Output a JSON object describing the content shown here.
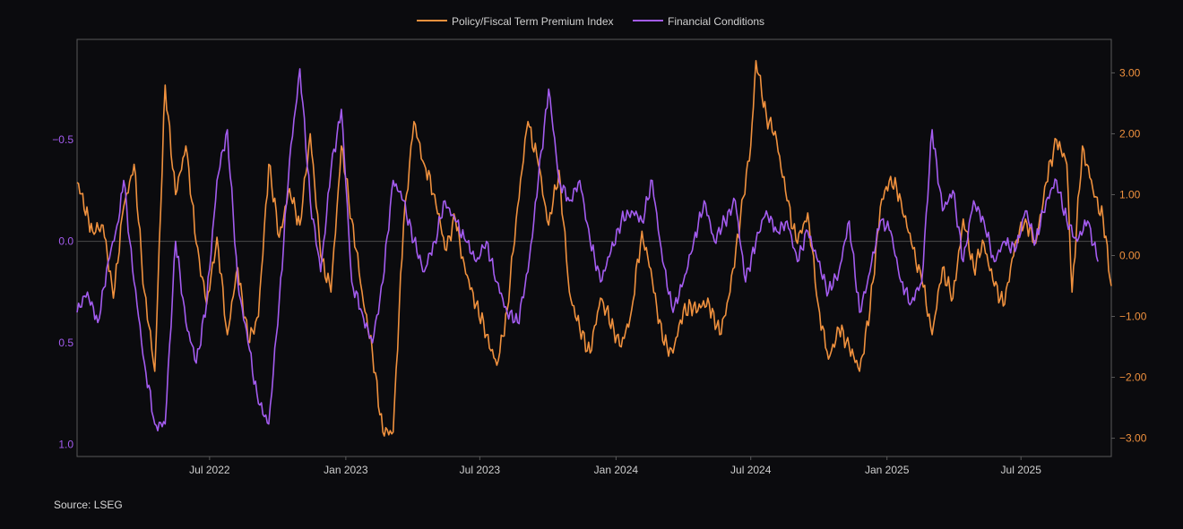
{
  "chart_data": {
    "type": "line",
    "title": "",
    "source_note": "Source: LSEG",
    "colors": {
      "background": "#0b0b0e",
      "frame": "#5a5a5a",
      "zero_line": "#4a4a4a",
      "left_axis": "#a45cf0",
      "right_axis": "#f0913e"
    },
    "x_range": [
      "2022-01-03",
      "2025-10-31"
    ],
    "x_ticks": [
      {
        "date": "2022-07-01",
        "label": "Jul 2022"
      },
      {
        "date": "2023-01-01",
        "label": "Jan 2023"
      },
      {
        "date": "2023-07-01",
        "label": "Jul 2023"
      },
      {
        "date": "2024-01-01",
        "label": "Jan 2024"
      },
      {
        "date": "2024-07-01",
        "label": "Jul 2024"
      },
      {
        "date": "2025-01-01",
        "label": "Jan 2025"
      },
      {
        "date": "2025-07-01",
        "label": "Jul 2025"
      }
    ],
    "y_left": {
      "label": "Financial Conditions",
      "inverted": true,
      "range": [
        -0.995,
        1.06
      ],
      "ticks": [
        {
          "value": -0.5,
          "label": "−0.5"
        },
        {
          "value": 0.0,
          "label": "0.0"
        },
        {
          "value": 0.5,
          "label": "0.5"
        },
        {
          "value": 1.0,
          "label": "1.0"
        }
      ]
    },
    "y_right": {
      "label": "Policy/Fiscal Term Premium Index",
      "range": [
        -3.3,
        3.55
      ],
      "ticks": [
        {
          "value": 3.0,
          "label": "3.00"
        },
        {
          "value": 2.0,
          "label": "2.00"
        },
        {
          "value": 1.0,
          "label": "1.00"
        },
        {
          "value": 0.0,
          "label": "0.00"
        },
        {
          "value": -1.0,
          "label": "−1.00"
        },
        {
          "value": -2.0,
          "label": "−2.00"
        },
        {
          "value": -3.0,
          "label": "−3.00"
        }
      ]
    },
    "legend": {
      "placement": "top-center",
      "entries": [
        "Policy/Fiscal Term Premium Index",
        "Financial Conditions"
      ]
    },
    "series": [
      {
        "name": "Policy/Fiscal Term Premium Index",
        "axis": "right",
        "color": "#f0913e",
        "points": [
          [
            "2022-01-03",
            1.2
          ],
          [
            "2022-01-24",
            0.4
          ],
          [
            "2022-02-07",
            0.5
          ],
          [
            "2022-02-21",
            -0.7
          ],
          [
            "2022-03-07",
            0.8
          ],
          [
            "2022-03-21",
            1.5
          ],
          [
            "2022-04-04",
            -0.6
          ],
          [
            "2022-04-18",
            -1.9
          ],
          [
            "2022-05-02",
            2.8
          ],
          [
            "2022-05-16",
            1.0
          ],
          [
            "2022-05-30",
            1.8
          ],
          [
            "2022-06-13",
            0.2
          ],
          [
            "2022-06-27",
            -0.8
          ],
          [
            "2022-07-11",
            0.3
          ],
          [
            "2022-07-25",
            -1.3
          ],
          [
            "2022-08-08",
            -0.2
          ],
          [
            "2022-08-22",
            -1.4
          ],
          [
            "2022-09-05",
            -1.0
          ],
          [
            "2022-09-19",
            1.5
          ],
          [
            "2022-10-03",
            0.3
          ],
          [
            "2022-10-17",
            1.1
          ],
          [
            "2022-10-31",
            0.5
          ],
          [
            "2022-11-14",
            2.0
          ],
          [
            "2022-11-28",
            0.0
          ],
          [
            "2022-12-12",
            -0.6
          ],
          [
            "2022-12-26",
            1.8
          ],
          [
            "2023-01-09",
            0.6
          ],
          [
            "2023-01-23",
            -0.6
          ],
          [
            "2023-02-06",
            -1.6
          ],
          [
            "2023-02-20",
            -2.9
          ],
          [
            "2023-03-06",
            -2.9
          ],
          [
            "2023-03-20",
            0.5
          ],
          [
            "2023-04-03",
            2.2
          ],
          [
            "2023-04-17",
            1.5
          ],
          [
            "2023-05-01",
            1.0
          ],
          [
            "2023-05-15",
            0.1
          ],
          [
            "2023-05-29",
            0.6
          ],
          [
            "2023-06-12",
            -0.3
          ],
          [
            "2023-06-26",
            -0.8
          ],
          [
            "2023-07-10",
            -1.3
          ],
          [
            "2023-07-24",
            -1.8
          ],
          [
            "2023-08-07",
            -0.9
          ],
          [
            "2023-08-21",
            0.8
          ],
          [
            "2023-09-04",
            2.2
          ],
          [
            "2023-09-18",
            1.5
          ],
          [
            "2023-10-02",
            0.5
          ],
          [
            "2023-10-16",
            1.4
          ],
          [
            "2023-10-30",
            -0.6
          ],
          [
            "2023-11-13",
            -1.2
          ],
          [
            "2023-11-27",
            -1.6
          ],
          [
            "2023-12-11",
            -0.7
          ],
          [
            "2024-01-08",
            -1.5
          ],
          [
            "2024-01-22",
            -0.9
          ],
          [
            "2024-02-05",
            0.4
          ],
          [
            "2024-02-19",
            -0.4
          ],
          [
            "2024-03-04",
            -1.4
          ],
          [
            "2024-03-18",
            -1.6
          ],
          [
            "2024-04-01",
            -0.9
          ],
          [
            "2024-05-06",
            -0.8
          ],
          [
            "2024-05-20",
            -1.3
          ],
          [
            "2024-06-03",
            -0.6
          ],
          [
            "2024-06-17",
            0.6
          ],
          [
            "2024-07-01",
            1.8
          ],
          [
            "2024-07-08",
            3.2
          ],
          [
            "2024-07-22",
            2.3
          ],
          [
            "2024-08-05",
            1.9
          ],
          [
            "2024-08-19",
            0.9
          ],
          [
            "2024-09-02",
            0.2
          ],
          [
            "2024-09-16",
            0.7
          ],
          [
            "2024-09-30",
            -0.8
          ],
          [
            "2024-10-14",
            -1.7
          ],
          [
            "2024-10-28",
            -1.2
          ],
          [
            "2024-11-11",
            -1.5
          ],
          [
            "2024-11-25",
            -1.9
          ],
          [
            "2024-12-09",
            -0.9
          ],
          [
            "2024-12-23",
            0.8
          ],
          [
            "2025-01-06",
            1.3
          ],
          [
            "2025-01-20",
            0.9
          ],
          [
            "2025-02-03",
            0.2
          ],
          [
            "2025-02-17",
            -0.4
          ],
          [
            "2025-03-03",
            -1.3
          ],
          [
            "2025-03-17",
            -0.2
          ],
          [
            "2025-03-31",
            -0.7
          ],
          [
            "2025-04-14",
            0.6
          ],
          [
            "2025-04-28",
            -0.2
          ],
          [
            "2025-05-12",
            0.2
          ],
          [
            "2025-05-26",
            -0.5
          ],
          [
            "2025-06-09",
            -0.8
          ],
          [
            "2025-06-23",
            0.2
          ],
          [
            "2025-07-07",
            0.6
          ],
          [
            "2025-07-21",
            0.2
          ],
          [
            "2025-08-04",
            1.2
          ],
          [
            "2025-08-18",
            1.9
          ],
          [
            "2025-09-01",
            1.5
          ],
          [
            "2025-09-08",
            -0.6
          ],
          [
            "2025-09-22",
            1.8
          ],
          [
            "2025-10-06",
            1.1
          ],
          [
            "2025-10-20",
            0.6
          ],
          [
            "2025-10-31",
            -0.5
          ]
        ]
      },
      {
        "name": "Financial Conditions",
        "axis": "left",
        "color": "#a45cf0",
        "points": [
          [
            "2022-01-03",
            0.35
          ],
          [
            "2022-01-17",
            0.25
          ],
          [
            "2022-01-31",
            0.4
          ],
          [
            "2022-02-14",
            0.1
          ],
          [
            "2022-02-28",
            -0.1
          ],
          [
            "2022-03-07",
            -0.3
          ],
          [
            "2022-03-21",
            0.2
          ],
          [
            "2022-04-04",
            0.6
          ],
          [
            "2022-04-18",
            0.9
          ],
          [
            "2022-05-02",
            0.9
          ],
          [
            "2022-05-16",
            0.0
          ],
          [
            "2022-05-30",
            0.4
          ],
          [
            "2022-06-13",
            0.6
          ],
          [
            "2022-06-27",
            0.3
          ],
          [
            "2022-07-11",
            -0.3
          ],
          [
            "2022-07-25",
            -0.55
          ],
          [
            "2022-08-08",
            0.2
          ],
          [
            "2022-08-22",
            0.5
          ],
          [
            "2022-09-05",
            0.8
          ],
          [
            "2022-09-19",
            0.9
          ],
          [
            "2022-10-03",
            0.3
          ],
          [
            "2022-10-17",
            -0.4
          ],
          [
            "2022-10-31",
            -0.85
          ],
          [
            "2022-11-14",
            -0.2
          ],
          [
            "2022-11-28",
            0.15
          ],
          [
            "2022-12-12",
            -0.35
          ],
          [
            "2022-12-26",
            -0.65
          ],
          [
            "2023-01-09",
            0.2
          ],
          [
            "2023-01-23",
            0.35
          ],
          [
            "2023-02-06",
            0.5
          ],
          [
            "2023-02-20",
            0.2
          ],
          [
            "2023-03-06",
            -0.3
          ],
          [
            "2023-03-20",
            -0.2
          ],
          [
            "2023-04-03",
            0.0
          ],
          [
            "2023-04-17",
            0.15
          ],
          [
            "2023-05-01",
            0.0
          ],
          [
            "2023-05-15",
            -0.2
          ],
          [
            "2023-05-29",
            -0.1
          ],
          [
            "2023-06-12",
            0.0
          ],
          [
            "2023-06-26",
            0.1
          ],
          [
            "2023-07-10",
            0.0
          ],
          [
            "2023-07-24",
            0.2
          ],
          [
            "2023-08-07",
            0.35
          ],
          [
            "2023-08-21",
            0.4
          ],
          [
            "2023-09-04",
            0.15
          ],
          [
            "2023-09-18",
            -0.3
          ],
          [
            "2023-10-02",
            -0.75
          ],
          [
            "2023-10-16",
            -0.3
          ],
          [
            "2023-10-30",
            -0.2
          ],
          [
            "2023-11-13",
            -0.3
          ],
          [
            "2023-11-27",
            0.0
          ],
          [
            "2023-12-11",
            0.2
          ],
          [
            "2023-12-25",
            0.05
          ],
          [
            "2024-01-08",
            -0.1
          ],
          [
            "2024-01-22",
            -0.15
          ],
          [
            "2024-02-05",
            -0.1
          ],
          [
            "2024-02-19",
            -0.3
          ],
          [
            "2024-03-04",
            0.1
          ],
          [
            "2024-03-18",
            0.35
          ],
          [
            "2024-04-01",
            0.2
          ],
          [
            "2024-04-15",
            0.0
          ],
          [
            "2024-04-29",
            -0.2
          ],
          [
            "2024-05-13",
            0.0
          ],
          [
            "2024-05-27",
            -0.1
          ],
          [
            "2024-06-10",
            -0.2
          ],
          [
            "2024-06-24",
            0.2
          ],
          [
            "2024-07-08",
            0.0
          ],
          [
            "2024-07-22",
            -0.15
          ],
          [
            "2024-08-05",
            -0.05
          ],
          [
            "2024-08-19",
            -0.1
          ],
          [
            "2024-09-02",
            0.1
          ],
          [
            "2024-09-16",
            -0.05
          ],
          [
            "2024-09-30",
            0.1
          ],
          [
            "2024-10-14",
            0.25
          ],
          [
            "2024-10-28",
            0.15
          ],
          [
            "2024-11-11",
            -0.1
          ],
          [
            "2024-11-25",
            0.35
          ],
          [
            "2024-12-09",
            0.15
          ],
          [
            "2024-12-23",
            -0.1
          ],
          [
            "2025-01-06",
            -0.05
          ],
          [
            "2025-01-20",
            0.2
          ],
          [
            "2025-02-03",
            0.3
          ],
          [
            "2025-02-17",
            0.2
          ],
          [
            "2025-03-03",
            -0.55
          ],
          [
            "2025-03-17",
            -0.15
          ],
          [
            "2025-03-31",
            -0.25
          ],
          [
            "2025-04-14",
            0.1
          ],
          [
            "2025-04-28",
            -0.2
          ],
          [
            "2025-05-12",
            -0.1
          ],
          [
            "2025-05-26",
            0.1
          ],
          [
            "2025-06-09",
            0.0
          ],
          [
            "2025-06-23",
            0.05
          ],
          [
            "2025-07-07",
            -0.15
          ],
          [
            "2025-07-21",
            0.0
          ],
          [
            "2025-08-04",
            -0.2
          ],
          [
            "2025-08-18",
            -0.3
          ],
          [
            "2025-09-01",
            -0.1
          ],
          [
            "2025-09-15",
            0.0
          ],
          [
            "2025-09-29",
            -0.1
          ],
          [
            "2025-10-13",
            0.1
          ]
        ]
      }
    ]
  }
}
